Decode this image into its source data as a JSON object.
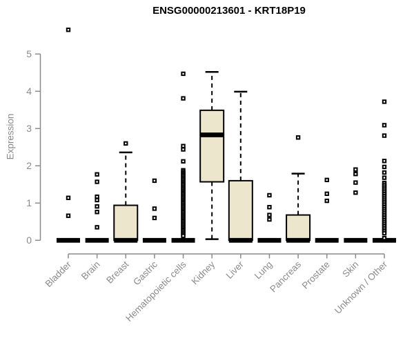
{
  "chart_data": {
    "type": "boxplot",
    "title": "ENSG00000213601 - KRT18P19",
    "ylabel": "Expression",
    "xlabel": "",
    "yticks": [
      0,
      1,
      2,
      3,
      4,
      5
    ],
    "ylim": [
      0,
      5.75
    ],
    "grid": false,
    "legend": "none",
    "colors": {
      "box_fill": "#ECE7CC",
      "box_border": "#000000",
      "axis": "#8a8a8a",
      "title_color": "#000000",
      "background": "#ffffff"
    },
    "categories": [
      "Bladder",
      "Brain",
      "Breast",
      "Gastric",
      "Hematopoietic cells",
      "Kidney",
      "Liver",
      "Lung",
      "Pancreas",
      "Prostate",
      "Skin",
      "Unknown / Other"
    ],
    "boxes": [
      {
        "label": "Bladder",
        "q1": 0,
        "median": 0,
        "q3": 0,
        "whisker_low": 0,
        "whisker_high": 0,
        "outliers": [
          5.65,
          1.14,
          0.66
        ]
      },
      {
        "label": "Brain",
        "q1": 0,
        "median": 0,
        "q3": 0,
        "whisker_low": 0,
        "whisker_high": 0,
        "outliers": [
          1.77,
          1.57,
          1.17,
          1.08,
          0.91,
          0.76,
          0.35
        ]
      },
      {
        "label": "Breast",
        "q1": 0,
        "median": 0,
        "q3": 0.94,
        "whisker_low": 0,
        "whisker_high": 2.36,
        "outliers": [
          2.6
        ]
      },
      {
        "label": "Gastric",
        "q1": 0,
        "median": 0,
        "q3": 0,
        "whisker_low": 0,
        "whisker_high": 0,
        "outliers": [
          1.6,
          0.85,
          0.6
        ]
      },
      {
        "label": "Hematopoietic cells",
        "q1": 0,
        "median": 0,
        "q3": 0,
        "whisker_low": 0,
        "whisker_high": 0,
        "outliers": [
          4.47,
          3.81,
          2.53,
          2.44,
          2.12,
          1.88,
          1.84,
          1.8,
          1.76,
          1.72,
          1.68,
          1.64,
          1.6,
          1.56,
          1.52,
          1.48,
          1.44,
          1.4,
          1.36,
          1.32,
          1.28,
          1.24,
          1.2,
          1.16,
          1.12,
          1.08,
          1.04,
          1.0,
          0.96,
          0.92,
          0.88,
          0.84,
          0.8,
          0.76,
          0.72,
          0.68,
          0.64,
          0.6,
          0.56,
          0.52,
          0.48,
          0.44,
          0.4,
          0.36,
          0.32,
          0.28,
          0.24,
          0.2,
          0.16,
          0.12
        ]
      },
      {
        "label": "Kidney",
        "q1": 1.57,
        "median": 2.83,
        "q3": 3.49,
        "whisker_low": 0.03,
        "whisker_high": 4.52,
        "outliers": []
      },
      {
        "label": "Liver",
        "q1": 0,
        "median": 0,
        "q3": 1.6,
        "whisker_low": 0,
        "whisker_high": 3.99,
        "outliers": []
      },
      {
        "label": "Lung",
        "q1": 0,
        "median": 0,
        "q3": 0,
        "whisker_low": 0,
        "whisker_high": 0,
        "outliers": [
          1.21,
          0.89,
          0.68,
          0.56
        ]
      },
      {
        "label": "Pancreas",
        "q1": 0,
        "median": 0,
        "q3": 0.68,
        "whisker_low": 0,
        "whisker_high": 1.79,
        "outliers": [
          2.76
        ]
      },
      {
        "label": "Prostate",
        "q1": 0,
        "median": 0,
        "q3": 0,
        "whisker_low": 0,
        "whisker_high": 0,
        "outliers": [
          1.62,
          1.25,
          1.06
        ]
      },
      {
        "label": "Skin",
        "q1": 0,
        "median": 0,
        "q3": 0,
        "whisker_low": 0,
        "whisker_high": 0,
        "outliers": [
          1.9,
          1.78,
          1.55,
          1.28
        ]
      },
      {
        "label": "Unknown / Other",
        "q1": 0,
        "median": 0,
        "q3": 0,
        "whisker_low": 0,
        "whisker_high": 0,
        "outliers": [
          3.72,
          3.09,
          2.81,
          2.13,
          1.97,
          1.82,
          1.68,
          1.54,
          1.49,
          1.44,
          1.39,
          1.34,
          1.29,
          1.24,
          1.19,
          1.14,
          1.09,
          1.04,
          0.99,
          0.94,
          0.89,
          0.84,
          0.79,
          0.74,
          0.69,
          0.64,
          0.59,
          0.54,
          0.49,
          0.44,
          0.39,
          0.34,
          0.29,
          0.24,
          0.19,
          0.06
        ]
      }
    ]
  }
}
